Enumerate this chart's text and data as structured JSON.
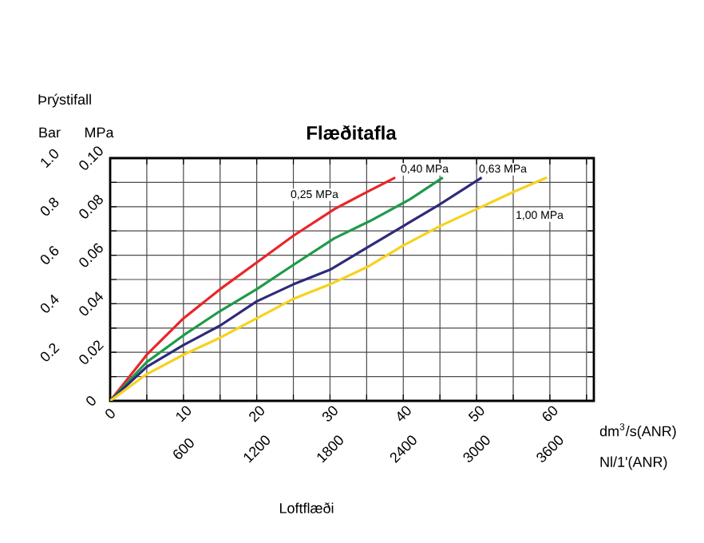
{
  "chart_data": {
    "type": "line",
    "title": "Flæðitafla",
    "xlabel": "dm$^{3}$/s(ANR)",
    "x2label": "Nl/1'(ANR)",
    "ylabel": "MPa",
    "y2label": "Bar",
    "xlim": [
      0,
      66
    ],
    "xticks": [
      0,
      {
        "value": 5,
        "label": null
      },
      10,
      {
        "value": 15,
        "label": null
      },
      20,
      {
        "value": 25,
        "label": null
      },
      30,
      {
        "value": 35,
        "label": null
      },
      40,
      {
        "value": 45,
        "label": null
      },
      50,
      {
        "value": 55,
        "label": null
      },
      60,
      {
        "value": 65,
        "label": null
      }
    ],
    "x2lim": [
      0,
      3960
    ],
    "x2ticks": [
      600,
      1200,
      1800,
      2400,
      3000,
      3600
    ],
    "ylim": [
      0,
      0.1
    ],
    "yticks": [
      0,
      {
        "value": 0.01,
        "label": null
      },
      0.02,
      {
        "value": 0.03,
        "label": null
      },
      0.04,
      {
        "value": 0.05,
        "label": null
      },
      0.06,
      {
        "value": 0.07,
        "label": null
      },
      0.08,
      {
        "value": 0.09,
        "label": null
      },
      {
        "value": 0.1,
        "label": "0.10"
      }
    ],
    "y2lim": [
      0,
      1
    ],
    "y2ticks": [
      0.2,
      0.4,
      0.6,
      0.8,
      {
        "value": 1,
        "label": "1.0"
      }
    ],
    "grid": true,
    "series": [
      {
        "color": "#e8262a",
        "x": [
          0,
          5,
          10,
          15,
          20,
          25,
          30.6,
          35,
          38.9
        ],
        "values": [
          0,
          0.019,
          0.034,
          0.046,
          0.057,
          0.068,
          0.079,
          0.086,
          0.092
        ]
      },
      {
        "color": "#1f9a4a",
        "x": [
          0,
          5,
          10,
          15,
          20,
          25,
          30.6,
          35.4,
          40.9,
          45.4
        ],
        "values": [
          0,
          0.016,
          0.027,
          0.037,
          0.046,
          0.056,
          0.067,
          0.074,
          0.083,
          0.092
        ]
      },
      {
        "color": "#2e2a7a",
        "x": [
          0,
          5,
          10,
          15,
          20,
          25,
          30,
          35,
          40,
          45,
          50.7
        ],
        "values": [
          0,
          0.014,
          0.023,
          0.031,
          0.041,
          0.048,
          0.054,
          0.063,
          0.072,
          0.081,
          0.092
        ]
      },
      {
        "color": "#f7d21e",
        "x": [
          0,
          5,
          10,
          15,
          20,
          25,
          30,
          35,
          40,
          45,
          50,
          55,
          59.6
        ],
        "values": [
          0,
          0.011,
          0.019,
          0.026,
          0.034,
          0.042,
          0.048,
          0.055,
          0.064,
          0.072,
          0.079,
          0.086,
          0.092
        ]
      }
    ],
    "annotations": [
      "Þrýstifall",
      "Loftflæði",
      "0,25 MPa",
      "0,40 MPa",
      "0,63 MPa",
      "1,00 MPa"
    ]
  }
}
